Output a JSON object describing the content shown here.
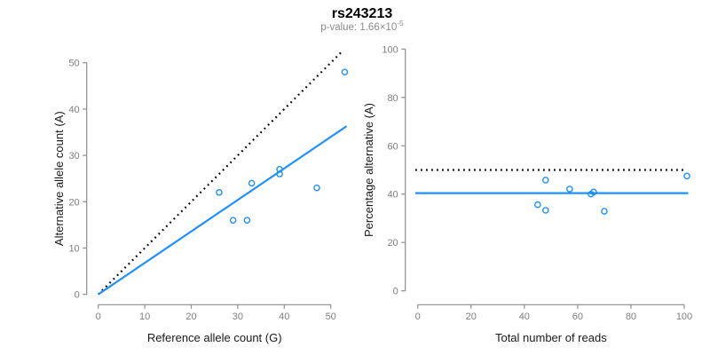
{
  "header": {
    "title": "rs243213",
    "subtitle_prefix": "p-value: 1.66×10",
    "subtitle_exponent": "-5"
  },
  "colors": {
    "point_blue": "#1E90FF",
    "dotted_black": "#000000",
    "axis_gray": "#8c8c8c",
    "tick_label_gray": "#7f7f7f"
  },
  "chart_data": [
    {
      "type": "scatter",
      "name": "allele-count-scatter",
      "xlabel": "Reference allele count (G)",
      "ylabel": "Alternative allele count (A)",
      "xticks": [
        0,
        10,
        20,
        30,
        40,
        50
      ],
      "yticks": [
        0,
        10,
        20,
        30,
        40,
        50
      ],
      "xlim": [
        0,
        53.5
      ],
      "ylim": [
        0,
        52.6
      ],
      "grid": false,
      "point_color": "#1E90FF",
      "points": [
        [
          26,
          22
        ],
        [
          29,
          16
        ],
        [
          32,
          16
        ],
        [
          33,
          24
        ],
        [
          39,
          26
        ],
        [
          39,
          27
        ],
        [
          47,
          23
        ],
        [
          53,
          48
        ]
      ],
      "lines": [
        {
          "name": "identity-line",
          "x1": 0,
          "y1": 0,
          "x2": 52.6,
          "y2": 52.6,
          "style": "dotted",
          "color": "#000000"
        },
        {
          "name": "fit-line",
          "x1": 0,
          "y1": 0,
          "x2": 53.4,
          "y2": 36.3,
          "style": "solid",
          "color": "#1E90FF"
        }
      ]
    },
    {
      "type": "scatter",
      "name": "percentage-alternative-scatter",
      "xlabel": "Total number of reads",
      "ylabel": "Percentage alternative (A)",
      "xticks": [
        0,
        20,
        40,
        60,
        80,
        100
      ],
      "yticks": [
        0,
        20,
        40,
        60,
        80,
        100
      ],
      "xlim": [
        0,
        101.5
      ],
      "ylim": [
        0,
        100
      ],
      "grid": false,
      "point_color": "#1E90FF",
      "points": [
        [
          45,
          35.6
        ],
        [
          48,
          45.8
        ],
        [
          48,
          33.3
        ],
        [
          57,
          42.1
        ],
        [
          65,
          40.0
        ],
        [
          66,
          40.9
        ],
        [
          70,
          32.9
        ],
        [
          101,
          47.5
        ]
      ],
      "lines": [
        {
          "name": "expected-50pct-line",
          "x1": -0.9,
          "y1": 50,
          "x2": 99.6,
          "y2": 50,
          "style": "dotted",
          "color": "#000000"
        },
        {
          "name": "mean-percentage-line",
          "x1": -0.9,
          "y1": 40.4,
          "x2": 101.5,
          "y2": 40.4,
          "style": "solid",
          "color": "#1E90FF"
        }
      ]
    }
  ]
}
